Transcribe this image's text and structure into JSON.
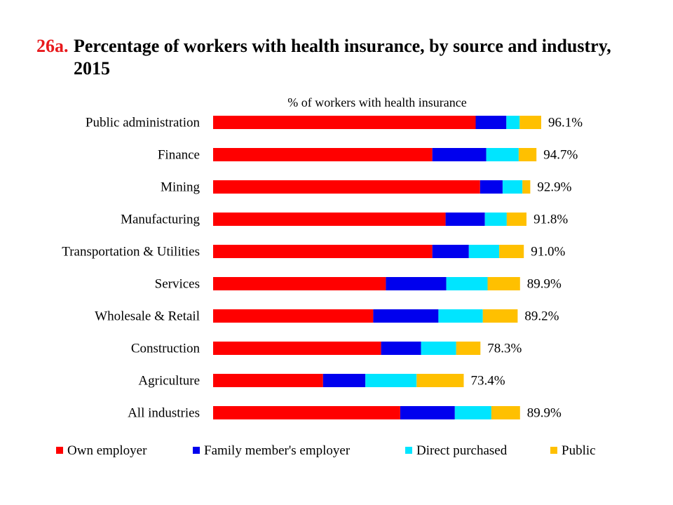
{
  "title": {
    "number": "26a.",
    "text": "Percentage of workers with health insurance, by source and industry, 2015"
  },
  "colors": {
    "Own employer": "#ff0000",
    "Family member's employer": "#0000ee",
    "Direct purchased": "#00e5ff",
    "Public": "#ffc000"
  },
  "chart_data": {
    "type": "bar",
    "orientation": "horizontal",
    "stacked": true,
    "title": "% of workers with health insurance",
    "categories": [
      "Public administration",
      "Finance",
      "Mining",
      "Manufacturing",
      "Transportation & Utilities",
      "Services",
      "Wholesale & Retail",
      "Construction",
      "Agriculture",
      "All industries"
    ],
    "series": [
      {
        "name": "Own employer",
        "values": [
          76.9,
          64.2,
          78.2,
          68.1,
          64.2,
          50.6,
          46.9,
          49.2,
          32.2,
          54.8
        ]
      },
      {
        "name": "Family member's employer",
        "values": [
          9.0,
          15.8,
          6.6,
          11.5,
          10.7,
          17.7,
          19.1,
          11.7,
          12.4,
          16.0
        ]
      },
      {
        "name": "Direct purchased",
        "values": [
          3.9,
          9.5,
          5.8,
          6.4,
          8.9,
          12.1,
          13.0,
          10.3,
          15.0,
          10.7
        ]
      },
      {
        "name": "Public",
        "values": [
          6.3,
          5.2,
          2.3,
          5.8,
          7.2,
          9.5,
          10.2,
          7.1,
          13.8,
          8.4
        ]
      }
    ],
    "totals": [
      "96.1%",
      "94.7%",
      "92.9%",
      "91.8%",
      "91.0%",
      "89.9%",
      "89.2%",
      "78.3%",
      "73.4%",
      "89.9%"
    ],
    "xlim": [
      0,
      100
    ],
    "grid": false,
    "legend_position": "bottom"
  }
}
